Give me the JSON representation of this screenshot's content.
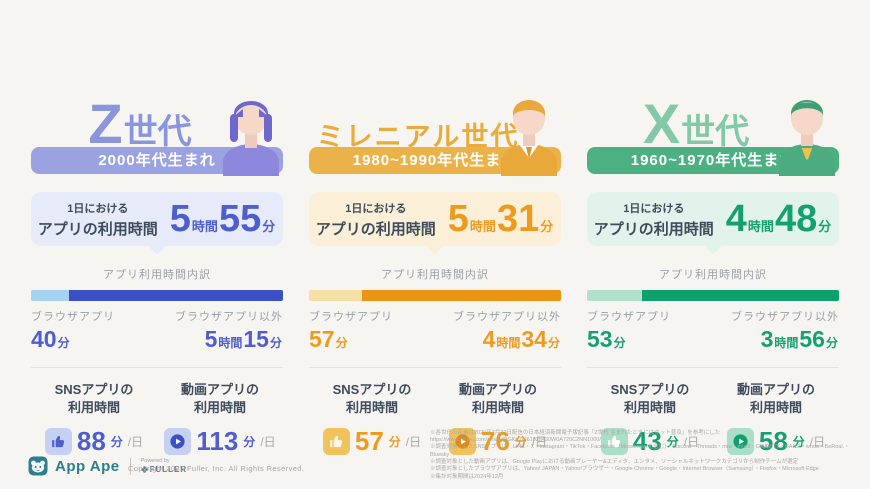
{
  "labels": {
    "daily_line1": "1日における",
    "daily_line2": "アプリの利用時間",
    "breakdown_title": "アプリ利用時間内訳",
    "browser_label": "ブラウザアプリ",
    "non_browser_label": "ブラウザアプリ以外",
    "hour_unit": "時間",
    "minute_unit": "分",
    "per_day": "/日",
    "sns_line1": "SNSアプリの",
    "sns_line2": "利用時間",
    "video_line1": "動画アプリの",
    "video_line2": "利用時間"
  },
  "columns": [
    {
      "name": "Z世代",
      "title_main": "Z",
      "title_suffix": "世代",
      "birth_years": "2000年代生まれ",
      "daily": {
        "hours": "5",
        "minutes": "55"
      },
      "browser": {
        "minutes": "40"
      },
      "non_browser": {
        "hours": "5",
        "minutes": "15"
      },
      "sns_minutes": "88",
      "video_minutes": "113",
      "bar": {
        "browser_pct": 15
      },
      "colors": {
        "title": "#8b95dc",
        "badge": "#9aa2e2",
        "accent": "#4e5ecd",
        "bubble": "#e7ebf9",
        "barLight": "#a6d3f1",
        "barDark": "#3b50c6",
        "iconBg": "#c6d0f3",
        "thumb": "#4e5ecd",
        "playCircle": "#3b50c6"
      }
    },
    {
      "name": "ミレニアル世代",
      "title_main": "ミレニアル世代",
      "title_suffix": "",
      "birth_years": "1980~1990年代生まれ",
      "daily": {
        "hours": "5",
        "minutes": "31"
      },
      "browser": {
        "minutes": "57"
      },
      "non_browser": {
        "hours": "4",
        "minutes": "34"
      },
      "sns_minutes": "57",
      "video_minutes": "76",
      "bar": {
        "browser_pct": 21
      },
      "colors": {
        "title": "#e9ab3c",
        "badge": "#ecb24a",
        "accent": "#ec9b1e",
        "bubble": "#fbf0d7",
        "barLight": "#f6dfa5",
        "barDark": "#ec9414",
        "iconBg": "#f1c35c",
        "thumb": "#fdf6e8",
        "playCircle": "#e08a10"
      }
    },
    {
      "name": "X世代",
      "title_main": "X",
      "title_suffix": "世代",
      "birth_years": "1960~1970年代生まれ",
      "daily": {
        "hours": "4",
        "minutes": "48"
      },
      "browser": {
        "minutes": "53"
      },
      "non_browser": {
        "hours": "3",
        "minutes": "56"
      },
      "sns_minutes": "43",
      "video_minutes": "58",
      "bar": {
        "browser_pct": 22
      },
      "colors": {
        "title": "#83c8a7",
        "badge": "#4cb083",
        "accent": "#16a071",
        "bubble": "#e1f3ea",
        "barLight": "#b2e1cb",
        "barDark": "#0da06c",
        "iconBg": "#a9dfc7",
        "thumb": "#ffffff",
        "playCircle": "#0da06c"
      }
    }
  ],
  "footer": {
    "brand": "App Ape",
    "powered_by": "Powered by",
    "powered_brand": "FULLER",
    "copyright": "Copyright 2025 Fuller, Inc. All Rights Reserved.",
    "notes": [
      "※各世代の定義は2020年7月27日配信の日本経済新聞電子版記事「Z世代 生まれたときにはネット普及」を参考にした",
      "https://www.nikkei.com/article/DGKKZO61928430W0A720C2NN1000/",
      "※調査対象としたSNSアプリは、LINE・X・Instagram・TikTok・Facebook（Messengerを含む）・Discord・Threads・mixi・mixi2・GRAVITY・BAND・whoo・BeReal.・Bluesky",
      "※調査対象とした動画アプリは、Google Playにおける動画プレーヤー&エディタ、エンタメ、ソーシャルネットワークカテゴリから制作チームが選定",
      "※調査対象としたブラウザアプリは、Yahoo! JAPAN・Yahoo!ブラウザー・Google Chrome・Google・Internet Browser（Samsung）・Firefox・Microsoft Edge",
      "※集計対象期間は2024年12月"
    ]
  },
  "chart_data": {
    "type": "bar",
    "title": "",
    "categories": [
      "Z世代（2000年代生まれ）",
      "ミレニアル世代（1980~1990年代生まれ）",
      "X世代（1960~1970年代生まれ）"
    ],
    "series": [
      {
        "name": "1日におけるアプリの利用時間（分）",
        "values": [
          355,
          331,
          288
        ]
      },
      {
        "name": "ブラウザアプリ（分）",
        "values": [
          40,
          57,
          53
        ]
      },
      {
        "name": "ブラウザアプリ以外（分）",
        "values": [
          315,
          274,
          236
        ]
      },
      {
        "name": "SNSアプリの利用時間（分/日）",
        "values": [
          88,
          57,
          43
        ]
      },
      {
        "name": "動画アプリの利用時間（分/日）",
        "values": [
          113,
          76,
          58
        ]
      }
    ],
    "legend_position": "none",
    "grid": false
  }
}
